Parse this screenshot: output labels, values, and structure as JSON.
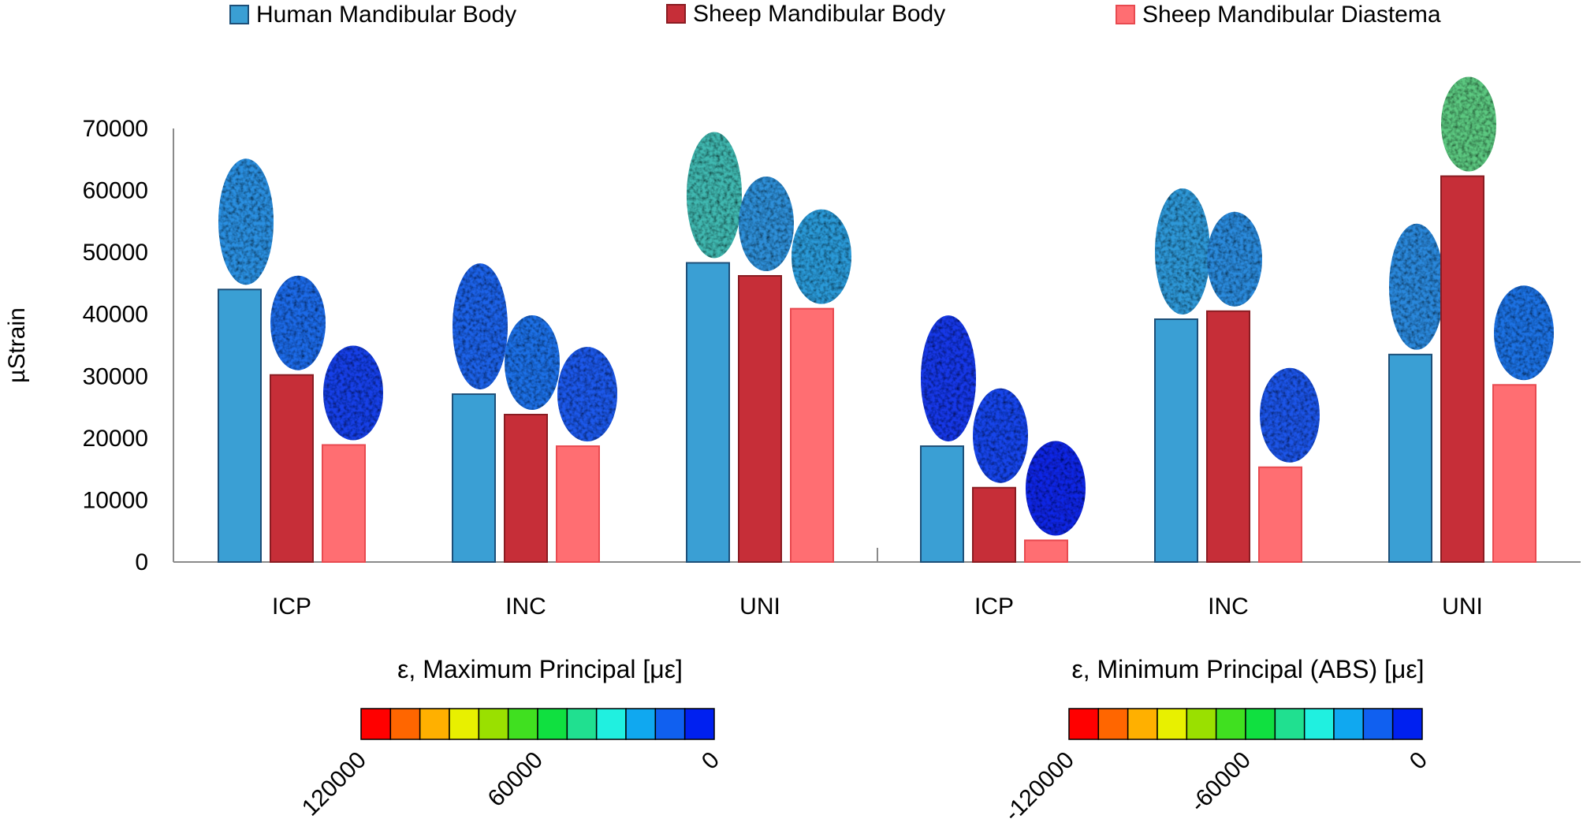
{
  "chart_data": {
    "type": "bar",
    "ylabel": "µStrain",
    "ylim": [
      0,
      70000
    ],
    "yticks": [
      0,
      10000,
      20000,
      30000,
      40000,
      50000,
      60000,
      70000
    ],
    "categories": [
      "ICP",
      "INC",
      "UNI",
      "ICP",
      "INC",
      "UNI"
    ],
    "series": [
      {
        "name": "Human Mandibular Body",
        "color": "#3a9fd4",
        "stroke": "#1d4f78",
        "values": [
          44000,
          27100,
          48300,
          18700,
          39200,
          33500
        ]
      },
      {
        "name": "Sheep Mandibular Body",
        "color": "#c62e38",
        "stroke": "#8a1c22",
        "values": [
          30200,
          23800,
          46200,
          12000,
          40500,
          62300
        ]
      },
      {
        "name": "Sheep Mandibular Diastema",
        "color": "#ff6e72",
        "stroke": "#e84a50",
        "values": [
          18900,
          18700,
          40900,
          3500,
          15300,
          28600
        ]
      }
    ],
    "colorbars": [
      {
        "title": "ε, Maximum Principal [με]",
        "ticks": [
          "120000",
          "60000",
          "0"
        ]
      },
      {
        "title": "ε, Minimum Principal (ABS) [με]",
        "ticks": [
          "-120000",
          "-60000",
          "0"
        ]
      }
    ],
    "colorbar_colors": [
      "#ff0000",
      "#ff6600",
      "#ffb000",
      "#e8f000",
      "#9ae000",
      "#40e020",
      "#10e040",
      "#20e090",
      "#20f0e0",
      "#10a8f0",
      "#1060f0",
      "#0020f0"
    ]
  }
}
